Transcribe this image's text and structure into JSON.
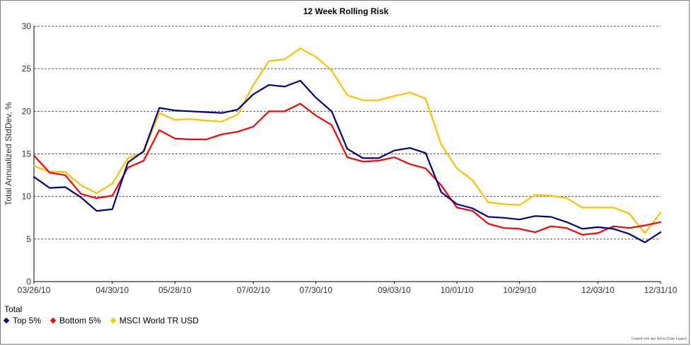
{
  "chart_data": {
    "type": "line",
    "title": "12 Week Rolling Risk",
    "ylabel": "Total Annualized StdDev, %",
    "xlabel": "",
    "ylim": [
      0,
      30
    ],
    "yticks": [
      0,
      5,
      10,
      15,
      20,
      25,
      30
    ],
    "grid": "horizontal-dashed",
    "xlim": [
      "03/26/10",
      "12/31/10"
    ],
    "xtick_labels": [
      "03/26/10",
      "04/30/10",
      "05/28/10",
      "07/02/10",
      "07/30/10",
      "09/03/10",
      "10/01/10",
      "10/29/10",
      "12/03/10",
      "12/31/10"
    ],
    "x": [
      "03/26/10",
      "04/02/10",
      "04/09/10",
      "04/16/10",
      "04/23/10",
      "04/30/10",
      "05/07/10",
      "05/14/10",
      "05/21/10",
      "05/28/10",
      "06/04/10",
      "06/11/10",
      "06/18/10",
      "06/25/10",
      "07/02/10",
      "07/09/10",
      "07/16/10",
      "07/23/10",
      "07/30/10",
      "08/06/10",
      "08/13/10",
      "08/20/10",
      "08/27/10",
      "09/03/10",
      "09/10/10",
      "09/17/10",
      "09/24/10",
      "10/01/10",
      "10/08/10",
      "10/15/10",
      "10/22/10",
      "10/29/10",
      "11/05/10",
      "11/12/10",
      "11/19/10",
      "11/26/10",
      "12/03/10",
      "12/10/10",
      "12/17/10",
      "12/24/10",
      "12/31/10"
    ],
    "series": [
      {
        "name": "Top 5%",
        "color": "#000080",
        "values": [
          12.3,
          11.0,
          11.1,
          9.9,
          8.3,
          8.5,
          14.0,
          15.3,
          20.4,
          20.1,
          20.0,
          19.9,
          19.8,
          20.2,
          22.0,
          23.1,
          22.9,
          23.6,
          21.6,
          20.0,
          15.6,
          14.5,
          14.5,
          15.4,
          15.7,
          15.1,
          10.5,
          9.1,
          8.6,
          7.6,
          7.5,
          7.3,
          7.7,
          7.6,
          7.0,
          6.2,
          6.4,
          6.2,
          5.6,
          4.6,
          5.8
        ]
      },
      {
        "name": "Bottom 5%",
        "color": "#ff0000",
        "values": [
          14.8,
          12.8,
          12.5,
          10.3,
          9.8,
          10.1,
          13.4,
          14.2,
          17.8,
          16.8,
          16.7,
          16.7,
          17.3,
          17.6,
          18.2,
          20.0,
          20.0,
          20.9,
          19.5,
          18.4,
          14.6,
          14.1,
          14.2,
          14.6,
          13.8,
          13.3,
          11.3,
          8.7,
          8.3,
          6.8,
          6.3,
          6.2,
          5.8,
          6.5,
          6.3,
          5.5,
          5.7,
          6.5,
          6.3,
          6.6,
          7.0
        ]
      },
      {
        "name": "MSCI World TR USD",
        "color": "#ffc000",
        "values": [
          13.6,
          12.9,
          12.9,
          11.3,
          10.4,
          11.5,
          14.5,
          15.2,
          19.8,
          19.0,
          19.1,
          18.9,
          18.8,
          19.6,
          23.1,
          25.9,
          26.1,
          27.4,
          26.4,
          24.8,
          21.9,
          21.3,
          21.3,
          21.8,
          22.2,
          21.5,
          16.1,
          13.3,
          11.9,
          9.3,
          9.1,
          9.0,
          10.2,
          10.1,
          9.8,
          8.7,
          8.7,
          8.7,
          8.0,
          5.7,
          8.1
        ]
      }
    ],
    "legend": {
      "title": "Total",
      "placement": "bottom-left"
    }
  },
  "footer": "Created with mpi Stylus (Data: Lipper)"
}
